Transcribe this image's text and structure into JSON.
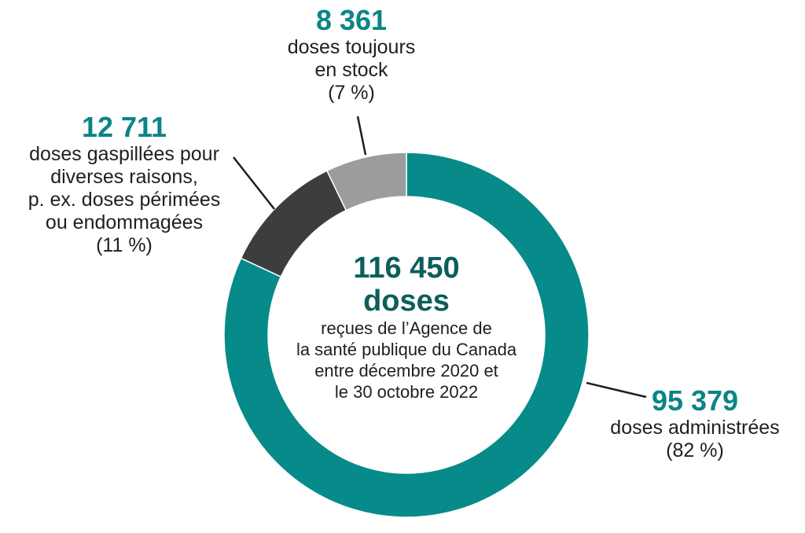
{
  "colors": {
    "administered": "#078a8a",
    "wasted": "#3d3d3d",
    "stock": "#9a9c9e",
    "teal_text": "#0b8585",
    "dark_teal_text": "#0d5e5a",
    "leader": "#1f1f1f"
  },
  "chart_data": {
    "type": "pie",
    "variant": "donut",
    "total": {
      "value": "116 450",
      "unit": "doses",
      "description": "reçues de l’Agence de la santé publique du Canada entre décembre 2020 et le 30 octobre 2022",
      "description_lines": [
        "reçues de l’Agence de",
        "la santé publique du Canada",
        "entre décembre 2020 et",
        "le 30 octobre 2022"
      ]
    },
    "slices": [
      {
        "key": "administered",
        "value": 95379,
        "value_label": "95 379",
        "description": "doses administrées",
        "description_lines": [
          "doses administrées"
        ],
        "percent": 82,
        "percent_label": "(82 %)"
      },
      {
        "key": "wasted",
        "value": 12711,
        "value_label": "12 711",
        "description": "doses gaspillées pour diverses raisons, p. ex. doses périmées ou endommagées",
        "description_lines": [
          "doses gaspillées pour",
          "diverses raisons,",
          "p. ex. doses périmées",
          "ou endommagées"
        ],
        "percent": 11,
        "percent_label": "(11 %)"
      },
      {
        "key": "stock",
        "value": 8361,
        "value_label": "8 361",
        "description": "doses toujours en stock",
        "description_lines": [
          "doses toujours",
          "en stock"
        ],
        "percent": 7,
        "percent_label": "(7 %)"
      }
    ]
  }
}
